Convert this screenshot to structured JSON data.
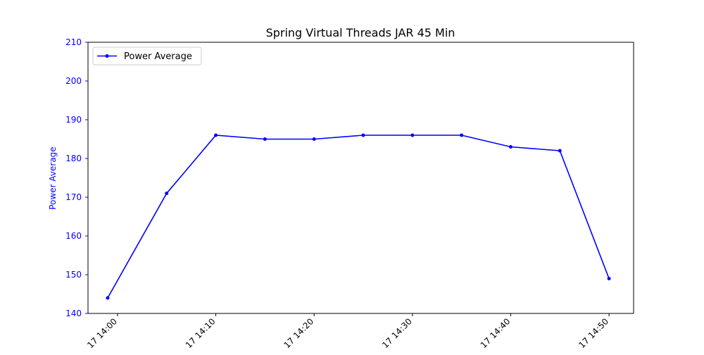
{
  "chart_data": {
    "type": "line",
    "title": "Spring Virtual Threads JAR 45 Min",
    "xlabel": "",
    "ylabel": "Power Average",
    "ylim": [
      140,
      210
    ],
    "yticks": [
      140,
      150,
      160,
      170,
      180,
      190,
      200,
      210
    ],
    "xlim": [
      "14:00",
      "14:50"
    ],
    "xticks": [
      {
        "time": "14:00",
        "label": "17 14:00"
      },
      {
        "time": "14:10",
        "label": "17 14:10"
      },
      {
        "time": "14:20",
        "label": "17 14:20"
      },
      {
        "time": "14:30",
        "label": "17 14:30"
      },
      {
        "time": "14:40",
        "label": "17 14:40"
      },
      {
        "time": "14:50",
        "label": "17 14:50"
      }
    ],
    "grid": false,
    "legend_position": "top-left",
    "series": [
      {
        "name": "Power Average",
        "color": "#0000ff",
        "x": [
          "13:59",
          "14:05",
          "14:10",
          "14:15",
          "14:20",
          "14:25",
          "14:30",
          "14:35",
          "14:40",
          "14:45",
          "14:50"
        ],
        "y": [
          144,
          171,
          186,
          185,
          185,
          186,
          186,
          186,
          183,
          182,
          149
        ]
      }
    ],
    "axis_color": "#0000ff"
  }
}
